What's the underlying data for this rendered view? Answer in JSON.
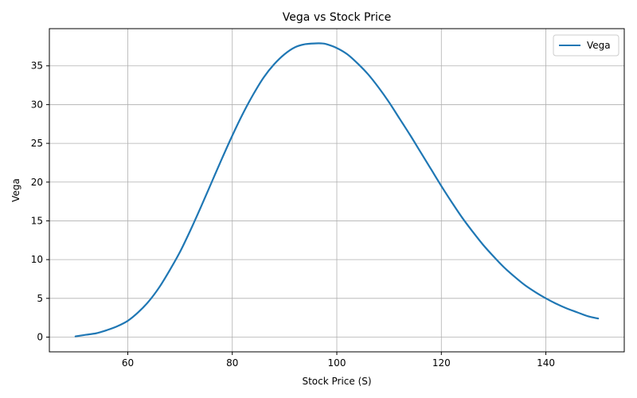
{
  "chart_data": {
    "type": "line",
    "title": "Vega vs Stock Price",
    "xlabel": "Stock Price (S)",
    "ylabel": "Vega",
    "xlim": [
      45,
      155
    ],
    "ylim": [
      -1.9,
      39.8
    ],
    "xticks": [
      60,
      80,
      100,
      120,
      140
    ],
    "yticks": [
      0,
      5,
      10,
      15,
      20,
      25,
      30,
      35
    ],
    "grid": true,
    "legend": "top-right",
    "series": [
      {
        "name": "Vega",
        "color": "#1f77b4",
        "x": [
          50,
          52,
          54,
          56,
          58,
          60,
          62,
          64,
          66,
          68,
          70,
          72,
          74,
          76,
          78,
          80,
          82,
          84,
          86,
          88,
          90,
          92,
          94,
          96,
          97,
          98,
          100,
          102,
          104,
          106,
          108,
          110,
          112,
          114,
          116,
          118,
          120,
          122,
          124,
          126,
          128,
          130,
          132,
          134,
          136,
          138,
          140,
          142,
          144,
          146,
          148,
          150
        ],
        "y": [
          0.1,
          0.3,
          0.5,
          0.9,
          1.4,
          2.1,
          3.2,
          4.6,
          6.4,
          8.6,
          11.0,
          13.8,
          16.8,
          19.9,
          23.0,
          26.0,
          28.8,
          31.3,
          33.5,
          35.2,
          36.5,
          37.4,
          37.8,
          37.9,
          37.9,
          37.8,
          37.3,
          36.5,
          35.3,
          33.9,
          32.2,
          30.3,
          28.2,
          26.1,
          23.9,
          21.7,
          19.5,
          17.4,
          15.4,
          13.6,
          11.9,
          10.4,
          9.0,
          7.8,
          6.7,
          5.8,
          5.0,
          4.3,
          3.7,
          3.2,
          2.7,
          2.4
        ]
      }
    ]
  }
}
